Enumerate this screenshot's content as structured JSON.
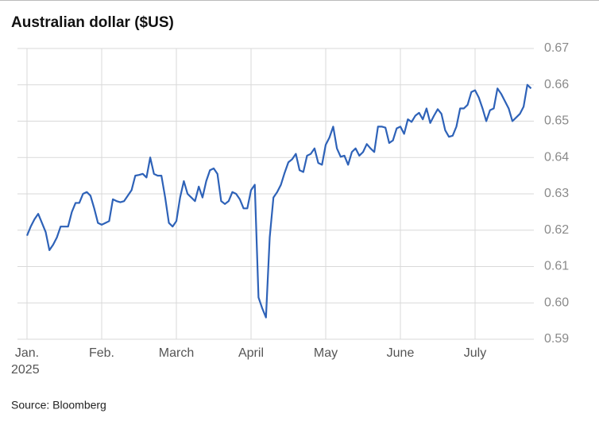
{
  "chart_data": {
    "type": "line",
    "title": "Australian dollar ($US)",
    "source": "Source: Bloomberg",
    "x_sub_label": "2025",
    "categories": [
      "Jan.",
      null,
      null,
      null,
      null,
      null,
      null,
      null,
      null,
      null,
      null,
      null,
      null,
      null,
      null,
      null,
      null,
      null,
      null,
      null,
      "Feb.",
      null,
      null,
      null,
      null,
      null,
      null,
      null,
      null,
      null,
      null,
      null,
      null,
      null,
      null,
      null,
      null,
      null,
      null,
      null,
      "March",
      null,
      null,
      null,
      null,
      null,
      null,
      null,
      null,
      null,
      null,
      null,
      null,
      null,
      null,
      null,
      null,
      null,
      null,
      null,
      "April",
      null,
      null,
      null,
      null,
      null,
      null,
      null,
      null,
      null,
      null,
      null,
      null,
      null,
      null,
      null,
      null,
      null,
      null,
      null,
      "May",
      null,
      null,
      null,
      null,
      null,
      null,
      null,
      null,
      null,
      null,
      null,
      null,
      null,
      null,
      null,
      null,
      null,
      null,
      null,
      "June",
      null,
      null,
      null,
      null,
      null,
      null,
      null,
      null,
      null,
      null,
      null,
      null,
      null,
      null,
      null,
      null,
      null,
      null,
      null,
      "July",
      null,
      null,
      null,
      null,
      null,
      null,
      null,
      null,
      null,
      null,
      null,
      null,
      null,
      null,
      null
    ],
    "values": [
      0.6185,
      0.621,
      0.623,
      0.6245,
      0.622,
      0.6195,
      0.6145,
      0.616,
      0.618,
      0.621,
      0.621,
      0.621,
      0.625,
      0.6275,
      0.6275,
      0.63,
      0.6305,
      0.6295,
      0.626,
      0.622,
      0.6215,
      0.622,
      0.6225,
      0.6285,
      0.628,
      0.6277,
      0.628,
      0.6295,
      0.631,
      0.635,
      0.6352,
      0.6355,
      0.6345,
      0.64,
      0.6355,
      0.635,
      0.635,
      0.629,
      0.622,
      0.621,
      0.6225,
      0.629,
      0.6335,
      0.63,
      0.629,
      0.628,
      0.632,
      0.629,
      0.6335,
      0.6365,
      0.637,
      0.6355,
      0.628,
      0.6272,
      0.628,
      0.6305,
      0.63,
      0.6285,
      0.626,
      0.626,
      0.631,
      0.6325,
      0.6015,
      0.5985,
      0.596,
      0.618,
      0.629,
      0.6305,
      0.6325,
      0.6358,
      0.6387,
      0.6395,
      0.641,
      0.6365,
      0.636,
      0.6405,
      0.641,
      0.6425,
      0.6385,
      0.638,
      0.6435,
      0.6455,
      0.6485,
      0.6425,
      0.6402,
      0.6405,
      0.638,
      0.6415,
      0.6425,
      0.6405,
      0.6415,
      0.6437,
      0.6425,
      0.6415,
      0.6485,
      0.6485,
      0.6482,
      0.644,
      0.6447,
      0.648,
      0.6485,
      0.6465,
      0.6505,
      0.6498,
      0.6515,
      0.6523,
      0.6505,
      0.6535,
      0.6495,
      0.6515,
      0.6533,
      0.652,
      0.6475,
      0.6457,
      0.646,
      0.6485,
      0.6535,
      0.6535,
      0.6545,
      0.658,
      0.6585,
      0.6565,
      0.6535,
      0.65,
      0.653,
      0.6535,
      0.659,
      0.6575,
      0.6555,
      0.6535,
      0.65,
      0.651,
      0.652,
      0.654,
      0.66,
      0.659
    ],
    "color": "#2e62b8",
    "ylim": [
      0.59,
      0.67
    ],
    "yticks": [
      0.59,
      {
        "value": 0.6,
        "label": "0.60"
      },
      0.61,
      0.62,
      0.63,
      0.64,
      0.65,
      0.66,
      0.67
    ],
    "grid": true
  }
}
